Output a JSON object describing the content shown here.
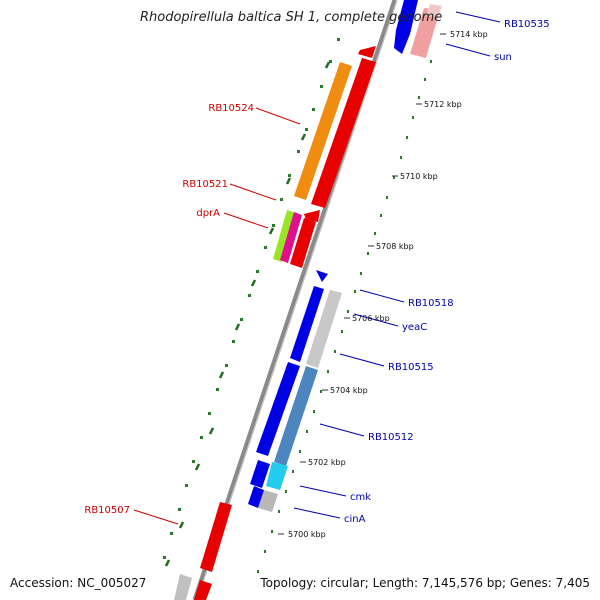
{
  "title": "Rhodopirellula baltica SH 1, complete genome",
  "accession": "Accession: NC_005027",
  "topology": "Topology: circular; Length: 7,145,576 bp; Genes: 7,405",
  "ticks": [
    "5714 kbp",
    "5712 kbp",
    "5710 kbp",
    "5708 kbp",
    "5706 kbp",
    "5704 kbp",
    "5702 kbp",
    "5700 kbp"
  ],
  "genes_left": [
    {
      "name": "RB10524",
      "color": "#cc0000"
    },
    {
      "name": "RB10521",
      "color": "#cc0000"
    },
    {
      "name": "dprA",
      "color": "#cc0000"
    },
    {
      "name": "RB10507",
      "color": "#cc0000"
    }
  ],
  "genes_right": [
    {
      "name": "RB10535",
      "color": "#0000aa"
    },
    {
      "name": "sun",
      "color": "#0000aa"
    },
    {
      "name": "RB10518",
      "color": "#0000aa"
    },
    {
      "name": "yeaC",
      "color": "#0000aa"
    },
    {
      "name": "RB10515",
      "color": "#0000aa"
    },
    {
      "name": "RB10512",
      "color": "#0000aa"
    },
    {
      "name": "cmk",
      "color": "#0000aa"
    },
    {
      "name": "cinA",
      "color": "#0000aa"
    }
  ]
}
